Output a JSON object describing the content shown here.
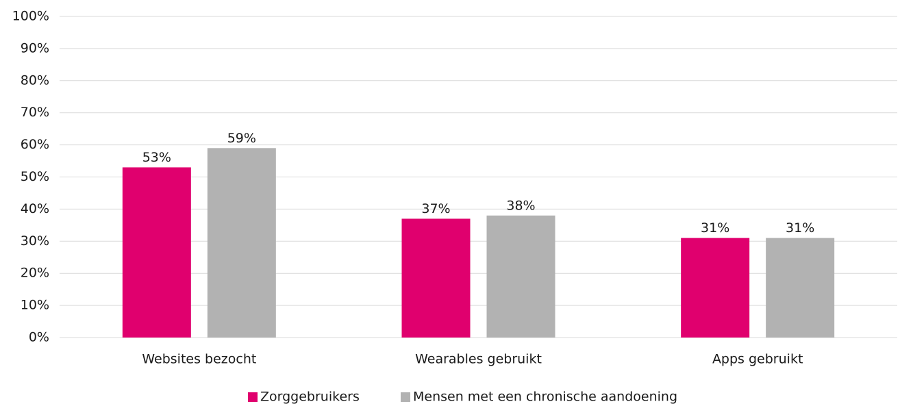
{
  "chart_data": {
    "type": "bar",
    "categories": [
      "Websites bezocht",
      "Wearables gebruikt",
      "Apps gebruikt"
    ],
    "series": [
      {
        "name": "Zorggebruikers",
        "color": "#e0006e",
        "values": [
          53,
          37,
          31
        ],
        "value_labels": [
          "53%",
          "37%",
          "31%"
        ]
      },
      {
        "name": "Mensen met een chronische aandoening",
        "color": "#b2b2b2",
        "values": [
          59,
          38,
          31
        ],
        "value_labels": [
          "59%",
          "38%",
          "31%"
        ]
      }
    ],
    "ylim": [
      0,
      100
    ],
    "yticks": [
      {
        "value": 0,
        "label": "0%"
      },
      {
        "value": 10,
        "label": "10%"
      },
      {
        "value": 20,
        "label": "20%"
      },
      {
        "value": 30,
        "label": "30%"
      },
      {
        "value": 40,
        "label": "40%"
      },
      {
        "value": 50,
        "label": "50%"
      },
      {
        "value": 60,
        "label": "60%"
      },
      {
        "value": 70,
        "label": "70%"
      },
      {
        "value": 80,
        "label": "80%"
      },
      {
        "value": 90,
        "label": "90%"
      },
      {
        "value": 100,
        "label": "100%"
      }
    ],
    "grid": true,
    "legend": "bottom"
  }
}
